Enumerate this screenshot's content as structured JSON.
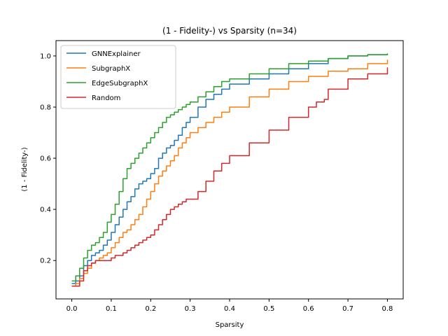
{
  "chart_data": {
    "type": "line",
    "title": "(1 - Fidelity-) vs Sparsity (n=34)",
    "xlabel": "Sparsity",
    "ylabel": "(1 - Fidelity-)",
    "xlim": [
      -0.04,
      0.84
    ],
    "ylim": [
      0.05,
      1.06
    ],
    "xticks": [
      0.0,
      0.1,
      0.2,
      0.3,
      0.4,
      0.5,
      0.6,
      0.7,
      0.8
    ],
    "yticks": [
      0.2,
      0.4,
      0.6,
      0.8,
      1.0
    ],
    "xtick_labels": [
      "0.0",
      "0.1",
      "0.2",
      "0.3",
      "0.4",
      "0.5",
      "0.6",
      "0.7",
      "0.8"
    ],
    "ytick_labels": [
      "0.2",
      "0.4",
      "0.6",
      "0.8",
      "1.0"
    ],
    "grid": false,
    "legend_position": "top-left",
    "series": [
      {
        "name": "GNNExplainer",
        "color": "#1f77b4",
        "x": [
          0.0,
          0.01,
          0.02,
          0.03,
          0.04,
          0.05,
          0.06,
          0.07,
          0.08,
          0.09,
          0.1,
          0.11,
          0.12,
          0.13,
          0.14,
          0.15,
          0.16,
          0.17,
          0.18,
          0.19,
          0.2,
          0.21,
          0.22,
          0.23,
          0.24,
          0.25,
          0.26,
          0.27,
          0.28,
          0.29,
          0.3,
          0.32,
          0.34,
          0.36,
          0.38,
          0.4,
          0.45,
          0.5,
          0.55,
          0.6,
          0.65,
          0.7,
          0.75,
          0.8
        ],
        "y": [
          0.11,
          0.12,
          0.14,
          0.18,
          0.2,
          0.22,
          0.23,
          0.24,
          0.26,
          0.28,
          0.31,
          0.34,
          0.37,
          0.4,
          0.43,
          0.45,
          0.48,
          0.5,
          0.51,
          0.52,
          0.54,
          0.56,
          0.6,
          0.62,
          0.64,
          0.65,
          0.67,
          0.69,
          0.72,
          0.74,
          0.76,
          0.8,
          0.83,
          0.85,
          0.87,
          0.89,
          0.91,
          0.93,
          0.95,
          0.97,
          0.99,
          1.0,
          1.005,
          1.005
        ]
      },
      {
        "name": "SubgraphX",
        "color": "#ff7f0e",
        "x": [
          0.0,
          0.01,
          0.02,
          0.03,
          0.04,
          0.05,
          0.06,
          0.07,
          0.08,
          0.09,
          0.1,
          0.11,
          0.12,
          0.13,
          0.14,
          0.15,
          0.16,
          0.17,
          0.18,
          0.19,
          0.2,
          0.21,
          0.22,
          0.23,
          0.24,
          0.25,
          0.26,
          0.27,
          0.28,
          0.29,
          0.3,
          0.32,
          0.34,
          0.36,
          0.38,
          0.4,
          0.45,
          0.5,
          0.55,
          0.6,
          0.65,
          0.7,
          0.75,
          0.8
        ],
        "y": [
          0.1,
          0.11,
          0.13,
          0.15,
          0.17,
          0.19,
          0.2,
          0.21,
          0.22,
          0.23,
          0.25,
          0.27,
          0.29,
          0.31,
          0.32,
          0.34,
          0.36,
          0.38,
          0.41,
          0.44,
          0.47,
          0.5,
          0.53,
          0.55,
          0.57,
          0.59,
          0.61,
          0.64,
          0.66,
          0.68,
          0.7,
          0.72,
          0.74,
          0.76,
          0.78,
          0.8,
          0.84,
          0.87,
          0.9,
          0.92,
          0.94,
          0.95,
          0.97,
          0.985
        ]
      },
      {
        "name": "EdgeSubgraphX",
        "color": "#2ca02c",
        "x": [
          0.0,
          0.01,
          0.02,
          0.03,
          0.04,
          0.05,
          0.06,
          0.07,
          0.08,
          0.09,
          0.1,
          0.11,
          0.12,
          0.13,
          0.14,
          0.15,
          0.16,
          0.17,
          0.18,
          0.19,
          0.2,
          0.21,
          0.22,
          0.23,
          0.24,
          0.25,
          0.26,
          0.27,
          0.28,
          0.29,
          0.3,
          0.32,
          0.34,
          0.36,
          0.38,
          0.4,
          0.45,
          0.5,
          0.55,
          0.6,
          0.65,
          0.7,
          0.75,
          0.8
        ],
        "y": [
          0.12,
          0.14,
          0.17,
          0.21,
          0.24,
          0.26,
          0.27,
          0.29,
          0.31,
          0.35,
          0.38,
          0.42,
          0.47,
          0.52,
          0.56,
          0.58,
          0.6,
          0.62,
          0.64,
          0.66,
          0.68,
          0.7,
          0.72,
          0.74,
          0.76,
          0.77,
          0.78,
          0.79,
          0.8,
          0.81,
          0.82,
          0.84,
          0.86,
          0.88,
          0.9,
          0.91,
          0.93,
          0.95,
          0.97,
          0.98,
          0.99,
          1.0,
          1.005,
          1.01
        ]
      },
      {
        "name": "Random",
        "color": "#d62728",
        "x": [
          0.0,
          0.01,
          0.02,
          0.03,
          0.04,
          0.05,
          0.06,
          0.07,
          0.08,
          0.09,
          0.1,
          0.11,
          0.12,
          0.13,
          0.14,
          0.15,
          0.16,
          0.17,
          0.18,
          0.19,
          0.2,
          0.21,
          0.22,
          0.23,
          0.24,
          0.25,
          0.26,
          0.27,
          0.28,
          0.29,
          0.3,
          0.32,
          0.34,
          0.36,
          0.38,
          0.4,
          0.45,
          0.5,
          0.55,
          0.6,
          0.62,
          0.64,
          0.65,
          0.7,
          0.75,
          0.8
        ],
        "y": [
          0.1,
          0.1,
          0.12,
          0.16,
          0.18,
          0.19,
          0.2,
          0.2,
          0.2,
          0.2,
          0.21,
          0.22,
          0.22,
          0.23,
          0.24,
          0.25,
          0.26,
          0.27,
          0.28,
          0.29,
          0.3,
          0.32,
          0.34,
          0.36,
          0.38,
          0.4,
          0.41,
          0.42,
          0.43,
          0.44,
          0.44,
          0.47,
          0.51,
          0.55,
          0.58,
          0.61,
          0.66,
          0.71,
          0.76,
          0.8,
          0.82,
          0.83,
          0.87,
          0.91,
          0.93,
          0.955
        ]
      }
    ]
  }
}
